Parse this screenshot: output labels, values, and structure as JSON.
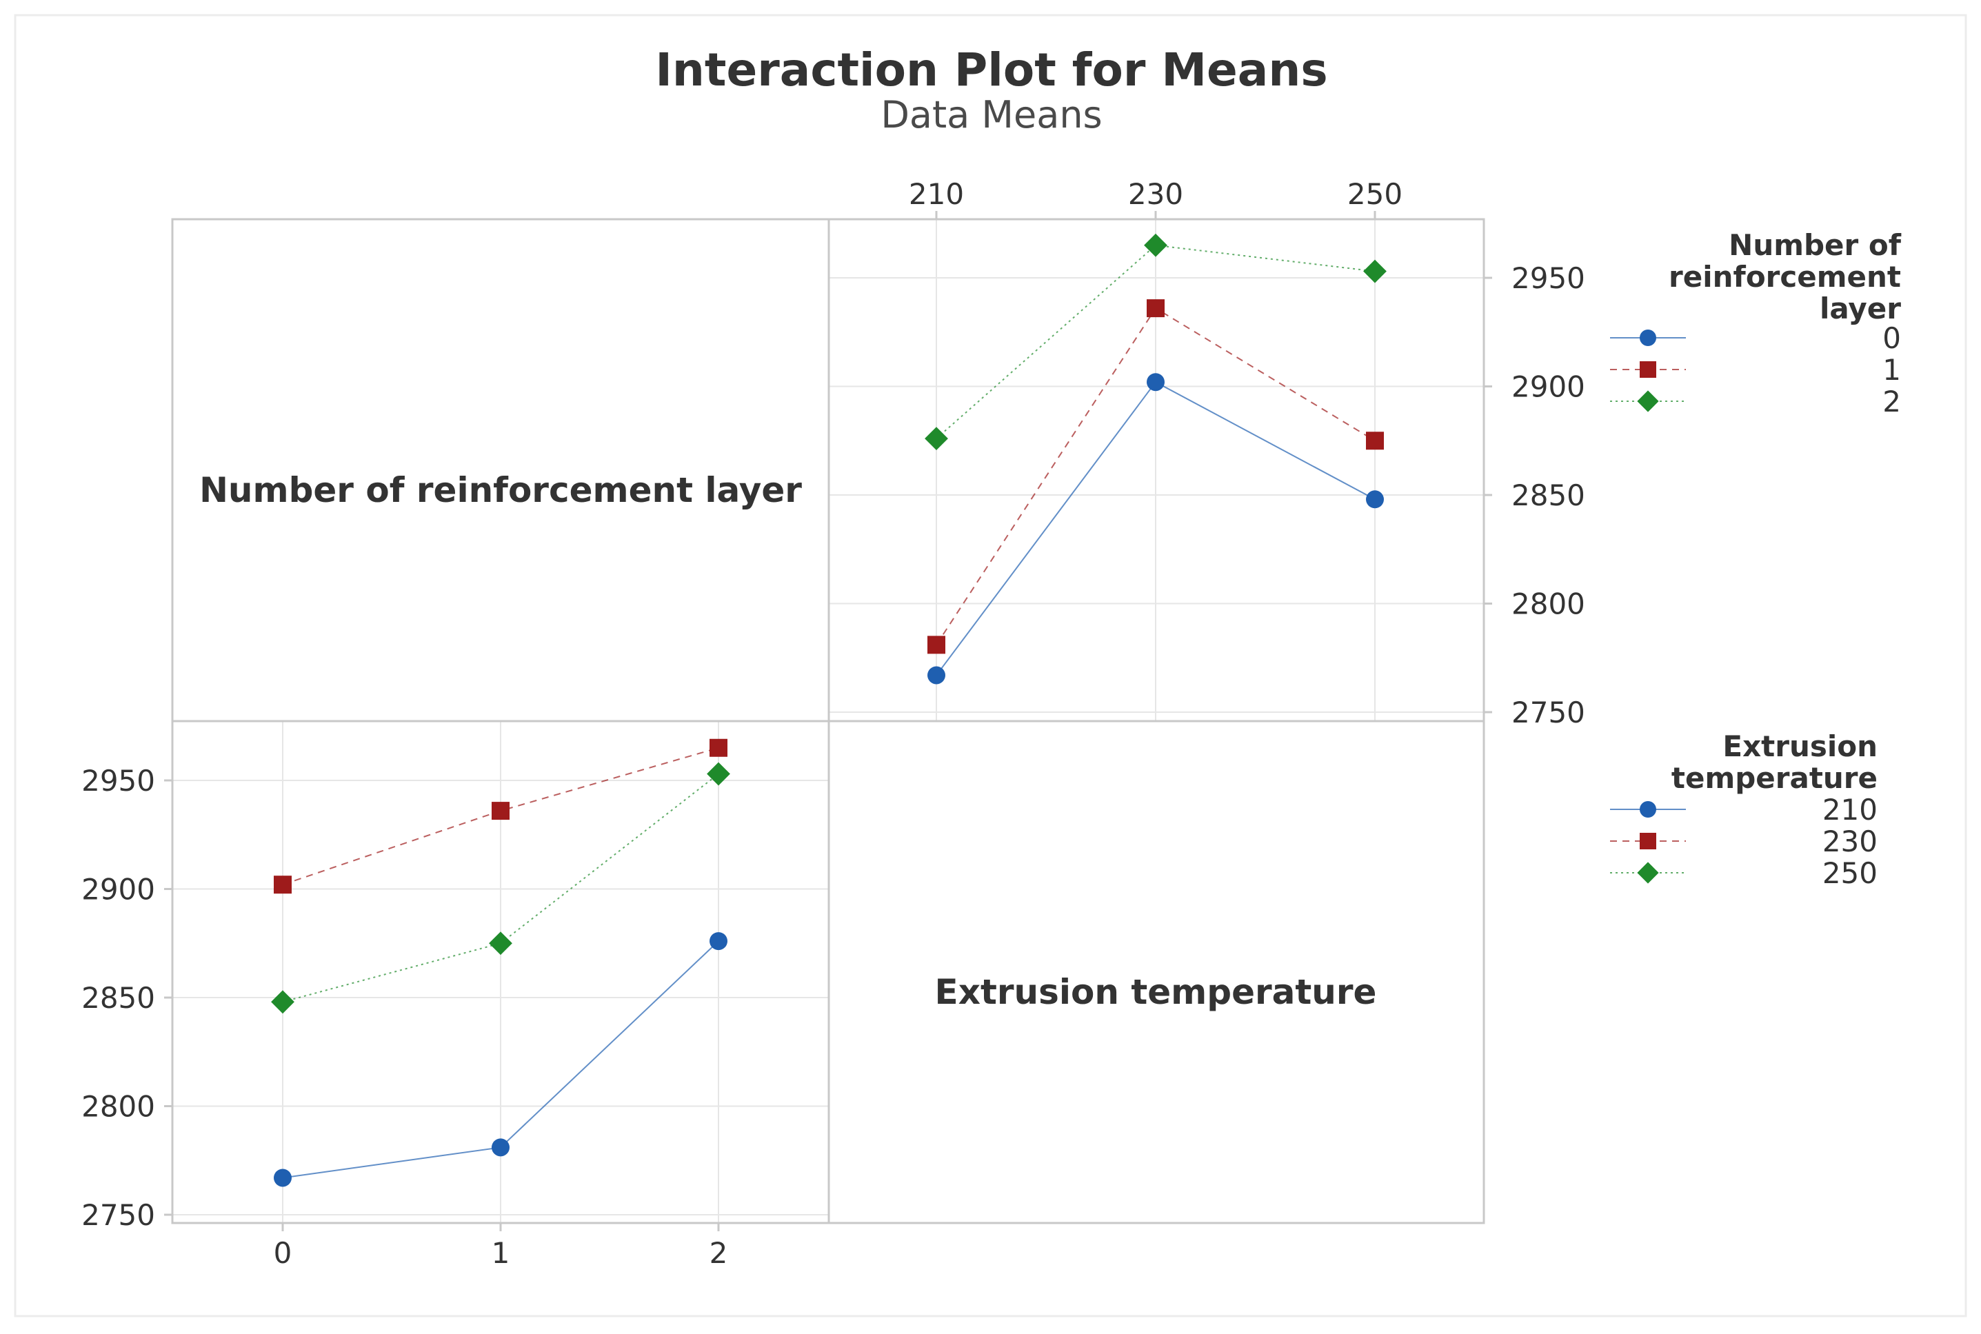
{
  "chart_data": {
    "type": "line",
    "title": "Interaction Plot for Means",
    "subtitle": "Data Means",
    "ylim": [
      2750,
      2975
    ],
    "yticks": [
      2750,
      2800,
      2850,
      2900,
      2950
    ],
    "colors": {
      "blue": "#1f5fb0",
      "red": "#9e1b1b",
      "green": "#1f8a2b",
      "grid": "#e6e6e6",
      "frame": "#c8c8c8",
      "text": "#333333"
    },
    "diagonal_labels": {
      "layer": "Number of reinforcement layer",
      "temp": "Extrusion temperature"
    },
    "top_panel": {
      "x_factor": "Extrusion temperature",
      "categories": [
        "210",
        "230",
        "250"
      ],
      "legend_title": [
        "Number of",
        "reinforcement",
        "layer"
      ],
      "series": [
        {
          "name": "0",
          "color": "#1f5fb0",
          "marker": "circle",
          "dash": "",
          "values": [
            2767,
            2902,
            2848
          ]
        },
        {
          "name": "1",
          "color": "#9e1b1b",
          "marker": "square",
          "dash": "10,8",
          "values": [
            2781,
            2936,
            2875
          ]
        },
        {
          "name": "2",
          "color": "#1f8a2b",
          "marker": "diamond",
          "dash": "3,5",
          "values": [
            2876,
            2965,
            2953
          ]
        }
      ]
    },
    "bottom_panel": {
      "x_factor": "Number of reinforcement layer",
      "categories": [
        "0",
        "1",
        "2"
      ],
      "legend_title": [
        "Extrusion",
        "temperature"
      ],
      "series": [
        {
          "name": "210",
          "color": "#1f5fb0",
          "marker": "circle",
          "dash": "",
          "values": [
            2767,
            2781,
            2876
          ]
        },
        {
          "name": "230",
          "color": "#9e1b1b",
          "marker": "square",
          "dash": "10,8",
          "values": [
            2902,
            2936,
            2965
          ]
        },
        {
          "name": "250",
          "color": "#1f8a2b",
          "marker": "diamond",
          "dash": "3,5",
          "values": [
            2848,
            2875,
            2953
          ]
        }
      ]
    }
  }
}
